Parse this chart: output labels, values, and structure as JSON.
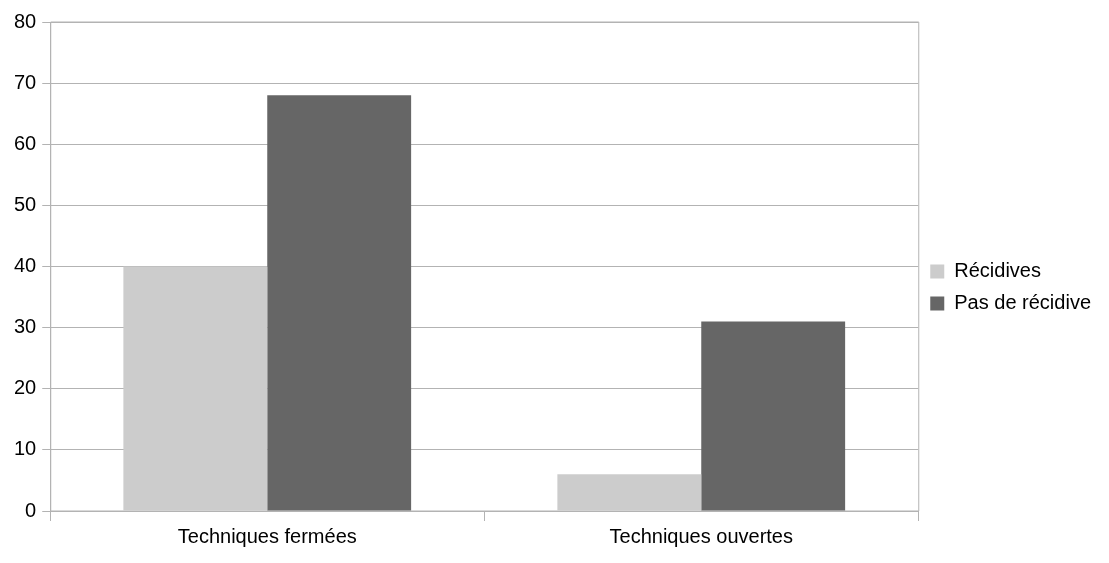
{
  "chart_data": {
    "type": "bar",
    "categories": [
      "Techniques fermées",
      "Techniques ouvertes"
    ],
    "series": [
      {
        "name": "Récidives",
        "color": "#cccccc",
        "values": [
          40,
          6
        ]
      },
      {
        "name": "Pas de récidive",
        "color": "#666666",
        "values": [
          68,
          31
        ]
      }
    ],
    "ylim": [
      0,
      80
    ],
    "yticks": [
      0,
      10,
      20,
      30,
      40,
      50,
      60,
      70,
      80
    ],
    "grid": "y",
    "legend": "right"
  }
}
